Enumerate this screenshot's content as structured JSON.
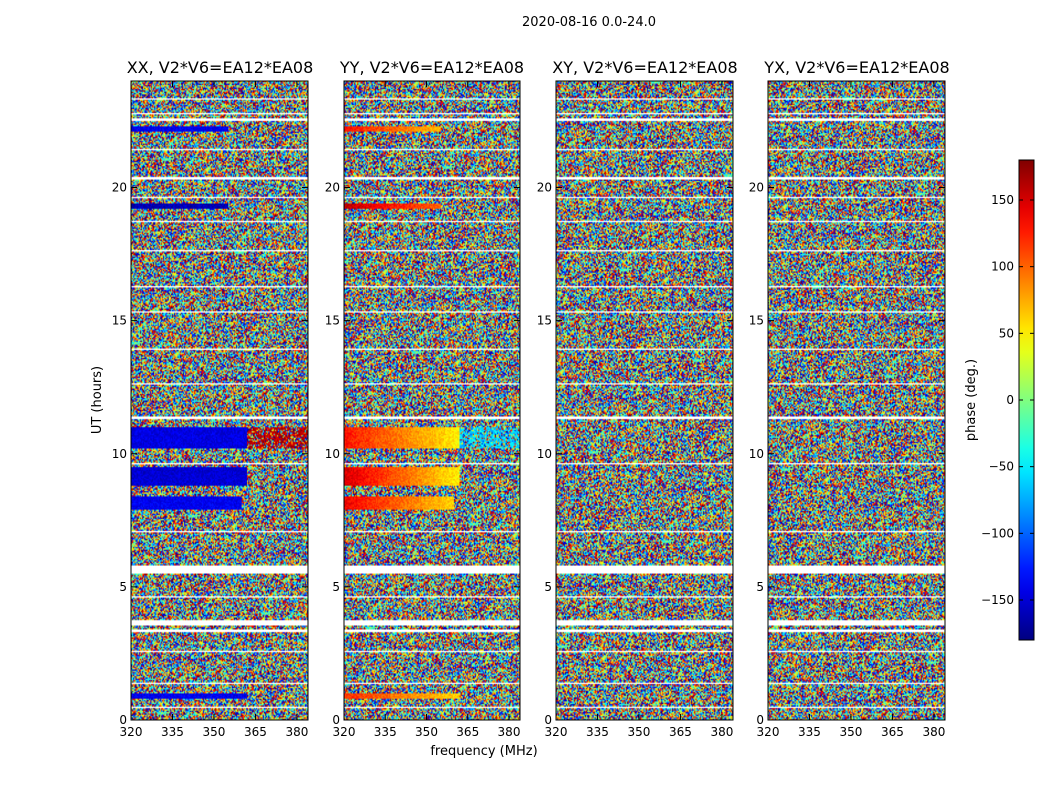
{
  "figure": {
    "suptitle": "2020-08-16 0.0-24.0",
    "ylabel": "UT (hours)",
    "xlabel": "frequency (MHz)",
    "colorbar_label": "phase (deg.)",
    "colorbar_ticks": [
      150,
      100,
      50,
      0,
      -50,
      -100,
      -150
    ],
    "colorbar_tick_labels": [
      "150",
      "100",
      "50",
      "0",
      "−50",
      "−100",
      "−150"
    ],
    "colorbar_range": [
      -180,
      180
    ],
    "colormap": "jet",
    "gap_color": "#ffffff"
  },
  "chart_data": {
    "type": "heatmap",
    "x_ticks": [
      320,
      335,
      350,
      365,
      380
    ],
    "x_tick_labels": [
      "320",
      "335",
      "350",
      "365",
      "380"
    ],
    "xlim": [
      320,
      384
    ],
    "y_ticks": [
      0,
      5,
      10,
      15,
      20
    ],
    "y_tick_labels": [
      "0",
      "5",
      "10",
      "15",
      "20"
    ],
    "ylim": [
      0,
      24
    ],
    "panels": [
      {
        "title": "XX, V2*V6=EA12*EA08",
        "coherent_bands": [
          {
            "t0": 0.8,
            "t1": 1.0,
            "f1": 362,
            "phase": -140
          },
          {
            "t0": 7.9,
            "t1": 8.4,
            "f1": 360,
            "phase": -140
          },
          {
            "t0": 8.8,
            "t1": 9.5,
            "f1": 362,
            "phase": -150
          },
          {
            "t0": 10.2,
            "t1": 11.0,
            "f1": 362,
            "phase": -145,
            "tail_phase": 160
          },
          {
            "t0": 19.2,
            "t1": 19.4,
            "f1": 355,
            "phase": -160
          },
          {
            "t0": 22.1,
            "t1": 22.3,
            "f1": 355,
            "phase": -140
          }
        ]
      },
      {
        "title": "YY, V2*V6=EA12*EA08",
        "coherent_bands": [
          {
            "t0": 0.8,
            "t1": 1.0,
            "f1": 362,
            "phase": 120,
            "phase_end": 60
          },
          {
            "t0": 7.9,
            "t1": 8.4,
            "f1": 360,
            "phase": 140,
            "phase_end": 60
          },
          {
            "t0": 8.8,
            "t1": 9.5,
            "f1": 362,
            "phase": 150,
            "phase_end": 50
          },
          {
            "t0": 10.2,
            "t1": 11.0,
            "f1": 362,
            "phase": 130,
            "phase_end": 50,
            "tail_phase": -60
          },
          {
            "t0": 19.2,
            "t1": 19.4,
            "f1": 355,
            "phase": 160,
            "phase_end": 100
          },
          {
            "t0": 22.1,
            "t1": 22.3,
            "f1": 355,
            "phase": 130,
            "phase_end": 70
          }
        ]
      },
      {
        "title": "XY, V2*V6=EA12*EA08",
        "coherent_bands": []
      },
      {
        "title": "YX, V2*V6=EA12*EA08",
        "coherent_bands": []
      }
    ],
    "flagged_time_ranges": [
      [
        0.45,
        0.52
      ],
      [
        1.35,
        1.42
      ],
      [
        2.55,
        2.62
      ],
      [
        3.3,
        3.38
      ],
      [
        3.55,
        3.75
      ],
      [
        4.6,
        4.67
      ],
      [
        5.5,
        5.8
      ],
      [
        7.05,
        7.12
      ],
      [
        9.6,
        9.66
      ],
      [
        11.3,
        11.38
      ],
      [
        12.6,
        12.66
      ],
      [
        13.9,
        13.97
      ],
      [
        15.3,
        15.36
      ],
      [
        16.25,
        16.32
      ],
      [
        17.6,
        17.67
      ],
      [
        18.7,
        18.77
      ],
      [
        19.6,
        19.66
      ],
      [
        20.3,
        20.42
      ],
      [
        21.4,
        21.46
      ],
      [
        22.5,
        22.6
      ],
      [
        22.75,
        22.82
      ],
      [
        23.3,
        23.36
      ]
    ]
  }
}
